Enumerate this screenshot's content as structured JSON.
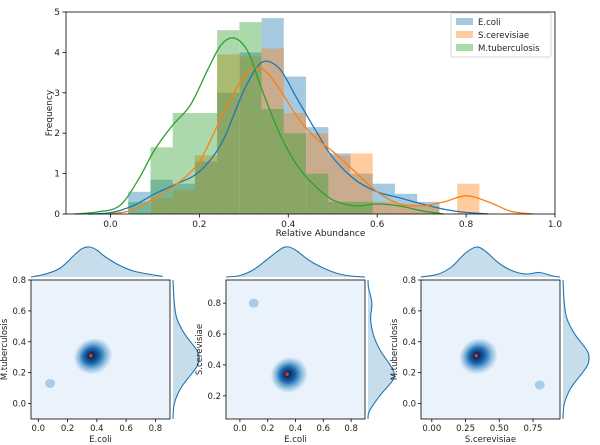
{
  "chart_data": [
    {
      "type": "histogram",
      "xlabel": "Relative Abundance",
      "ylabel": "Frequency",
      "xlim": [
        -0.1,
        1.0
      ],
      "ylim": [
        0,
        5
      ],
      "xticks": [
        "0.0",
        "0.2",
        "0.4",
        "0.6",
        "0.8",
        "1.0"
      ],
      "xtick_values": [
        0.0,
        0.2,
        0.4,
        0.6,
        0.8,
        1.0
      ],
      "yticks": [
        "0",
        "1",
        "2",
        "3",
        "4",
        "5"
      ],
      "ytick_values": [
        0,
        1,
        2,
        3,
        4,
        5
      ],
      "legend_position": "top-right",
      "series": [
        {
          "name": "E.coli",
          "color": "#1f77b4",
          "bins": [
            {
              "x0": 0.04,
              "x1": 0.09,
              "h": 0.55
            },
            {
              "x0": 0.09,
              "x1": 0.14,
              "h": 0.85
            },
            {
              "x0": 0.14,
              "x1": 0.19,
              "h": 0.75
            },
            {
              "x0": 0.19,
              "x1": 0.24,
              "h": 1.3
            },
            {
              "x0": 0.24,
              "x1": 0.29,
              "h": 3.0
            },
            {
              "x0": 0.29,
              "x1": 0.34,
              "h": 4.0
            },
            {
              "x0": 0.34,
              "x1": 0.39,
              "h": 4.85
            },
            {
              "x0": 0.39,
              "x1": 0.44,
              "h": 3.4
            },
            {
              "x0": 0.44,
              "x1": 0.49,
              "h": 2.15
            },
            {
              "x0": 0.49,
              "x1": 0.54,
              "h": 1.5
            },
            {
              "x0": 0.54,
              "x1": 0.59,
              "h": 1.0
            },
            {
              "x0": 0.59,
              "x1": 0.64,
              "h": 0.75
            },
            {
              "x0": 0.64,
              "x1": 0.69,
              "h": 0.5
            },
            {
              "x0": 0.69,
              "x1": 0.74,
              "h": 0.3
            }
          ],
          "kde": [
            [
              -0.05,
              0
            ],
            [
              0.0,
              0.03
            ],
            [
              0.05,
              0.2
            ],
            [
              0.1,
              0.5
            ],
            [
              0.15,
              0.75
            ],
            [
              0.2,
              1.05
            ],
            [
              0.25,
              1.75
            ],
            [
              0.3,
              3.05
            ],
            [
              0.34,
              3.75
            ],
            [
              0.38,
              3.6
            ],
            [
              0.42,
              2.85
            ],
            [
              0.46,
              2.1
            ],
            [
              0.5,
              1.4
            ],
            [
              0.55,
              0.85
            ],
            [
              0.6,
              0.55
            ],
            [
              0.65,
              0.4
            ],
            [
              0.7,
              0.25
            ],
            [
              0.75,
              0.12
            ],
            [
              0.8,
              0.04
            ],
            [
              0.85,
              0
            ]
          ]
        },
        {
          "name": "S.cerevisiae",
          "color": "#ff7f0e",
          "bins": [
            {
              "x0": 0.09,
              "x1": 0.14,
              "h": 0.4
            },
            {
              "x0": 0.14,
              "x1": 0.19,
              "h": 0.6
            },
            {
              "x0": 0.19,
              "x1": 0.24,
              "h": 1.45
            },
            {
              "x0": 0.24,
              "x1": 0.29,
              "h": 3.95
            },
            {
              "x0": 0.29,
              "x1": 0.34,
              "h": 3.9
            },
            {
              "x0": 0.34,
              "x1": 0.39,
              "h": 4.1
            },
            {
              "x0": 0.39,
              "x1": 0.44,
              "h": 2.5
            },
            {
              "x0": 0.44,
              "x1": 0.49,
              "h": 2.0
            },
            {
              "x0": 0.49,
              "x1": 0.54,
              "h": 1.45
            },
            {
              "x0": 0.54,
              "x1": 0.59,
              "h": 1.5
            },
            {
              "x0": 0.59,
              "x1": 0.64,
              "h": 0.3
            },
            {
              "x0": 0.64,
              "x1": 0.69,
              "h": 0.25
            },
            {
              "x0": 0.69,
              "x1": 0.74,
              "h": 0.2
            },
            {
              "x0": 0.78,
              "x1": 0.83,
              "h": 0.75
            }
          ],
          "kde": [
            [
              0.0,
              0
            ],
            [
              0.05,
              0.1
            ],
            [
              0.1,
              0.4
            ],
            [
              0.15,
              0.75
            ],
            [
              0.2,
              1.3
            ],
            [
              0.25,
              2.4
            ],
            [
              0.3,
              3.4
            ],
            [
              0.34,
              3.6
            ],
            [
              0.38,
              3.1
            ],
            [
              0.42,
              2.4
            ],
            [
              0.46,
              1.9
            ],
            [
              0.5,
              1.55
            ],
            [
              0.55,
              1.05
            ],
            [
              0.6,
              0.55
            ],
            [
              0.65,
              0.25
            ],
            [
              0.7,
              0.2
            ],
            [
              0.75,
              0.3
            ],
            [
              0.8,
              0.45
            ],
            [
              0.85,
              0.3
            ],
            [
              0.9,
              0.07
            ],
            [
              0.95,
              0
            ]
          ]
        },
        {
          "name": "M.tuberculosis",
          "color": "#2ca02c",
          "bins": [
            {
              "x0": 0.04,
              "x1": 0.09,
              "h": 0.3
            },
            {
              "x0": 0.09,
              "x1": 0.14,
              "h": 1.65
            },
            {
              "x0": 0.14,
              "x1": 0.19,
              "h": 2.5
            },
            {
              "x0": 0.19,
              "x1": 0.24,
              "h": 2.5
            },
            {
              "x0": 0.24,
              "x1": 0.29,
              "h": 4.55
            },
            {
              "x0": 0.29,
              "x1": 0.34,
              "h": 4.75
            },
            {
              "x0": 0.34,
              "x1": 0.39,
              "h": 2.6
            },
            {
              "x0": 0.39,
              "x1": 0.44,
              "h": 2.0
            },
            {
              "x0": 0.44,
              "x1": 0.49,
              "h": 1.0
            },
            {
              "x0": 0.49,
              "x1": 0.54,
              "h": 0.3
            },
            {
              "x0": 0.54,
              "x1": 0.59,
              "h": 0.3
            }
          ],
          "kde": [
            [
              -0.08,
              0
            ],
            [
              -0.03,
              0.05
            ],
            [
              0.02,
              0.2
            ],
            [
              0.06,
              0.8
            ],
            [
              0.1,
              1.6
            ],
            [
              0.14,
              2.2
            ],
            [
              0.18,
              2.7
            ],
            [
              0.22,
              3.6
            ],
            [
              0.25,
              4.2
            ],
            [
              0.28,
              4.35
            ],
            [
              0.31,
              4.0
            ],
            [
              0.34,
              3.1
            ],
            [
              0.38,
              2.0
            ],
            [
              0.42,
              1.2
            ],
            [
              0.46,
              0.7
            ],
            [
              0.5,
              0.35
            ],
            [
              0.55,
              0.2
            ],
            [
              0.6,
              0.25
            ],
            [
              0.65,
              0.2
            ],
            [
              0.7,
              0.08
            ],
            [
              0.75,
              0
            ]
          ]
        }
      ]
    },
    {
      "type": "kde_joint",
      "xlabel": "E.coli",
      "ylabel": "M.tuberculosis",
      "xlim": [
        -0.05,
        0.9
      ],
      "ylim": [
        -0.1,
        0.8
      ],
      "xticks": [
        "0.0",
        "0.2",
        "0.4",
        "0.6",
        "0.8"
      ],
      "xtick_values": [
        0.0,
        0.2,
        0.4,
        0.6,
        0.8
      ],
      "yticks": [
        "0.0",
        "0.2",
        "0.4",
        "0.6",
        "0.8"
      ],
      "ytick_values": [
        0.0,
        0.2,
        0.4,
        0.6,
        0.8
      ],
      "peak": [
        0.36,
        0.31
      ],
      "contour_extent": [
        0.13,
        0.11
      ],
      "outlier_blob": [
        0.08,
        0.13
      ],
      "marginal_x": [
        [
          -0.05,
          0
        ],
        [
          0.05,
          0.1
        ],
        [
          0.15,
          0.3
        ],
        [
          0.25,
          0.75
        ],
        [
          0.3,
          0.95
        ],
        [
          0.35,
          1.0
        ],
        [
          0.4,
          0.9
        ],
        [
          0.45,
          0.7
        ],
        [
          0.55,
          0.4
        ],
        [
          0.65,
          0.2
        ],
        [
          0.75,
          0.1
        ],
        [
          0.85,
          0.02
        ]
      ],
      "marginal_y": [
        [
          -0.1,
          0
        ],
        [
          0.0,
          0.05
        ],
        [
          0.1,
          0.3
        ],
        [
          0.2,
          0.75
        ],
        [
          0.25,
          0.95
        ],
        [
          0.3,
          1.0
        ],
        [
          0.35,
          0.9
        ],
        [
          0.45,
          0.45
        ],
        [
          0.55,
          0.15
        ],
        [
          0.65,
          0.05
        ],
        [
          0.8,
          0
        ]
      ]
    },
    {
      "type": "kde_joint",
      "xlabel": "E.coli",
      "ylabel": "S.cerevisiae",
      "xlim": [
        -0.1,
        0.9
      ],
      "ylim": [
        0.05,
        0.95
      ],
      "xticks": [
        "0.0",
        "0.2",
        "0.4",
        "0.6",
        "0.8"
      ],
      "xtick_values": [
        0.0,
        0.2,
        0.4,
        0.6,
        0.8
      ],
      "yticks": [
        "0.2",
        "0.4",
        "0.6",
        "0.8"
      ],
      "ytick_values": [
        0.2,
        0.4,
        0.6,
        0.8
      ],
      "peak": [
        0.34,
        0.34
      ],
      "contour_extent": [
        0.13,
        0.11
      ],
      "outlier_blob": [
        0.1,
        0.8
      ],
      "marginal_x": [
        [
          -0.1,
          0
        ],
        [
          0.0,
          0.05
        ],
        [
          0.1,
          0.25
        ],
        [
          0.2,
          0.6
        ],
        [
          0.3,
          0.95
        ],
        [
          0.35,
          1.0
        ],
        [
          0.4,
          0.9
        ],
        [
          0.5,
          0.55
        ],
        [
          0.6,
          0.3
        ],
        [
          0.7,
          0.12
        ],
        [
          0.8,
          0.03
        ],
        [
          0.9,
          0
        ]
      ],
      "marginal_y": [
        [
          0.05,
          0
        ],
        [
          0.1,
          0.05
        ],
        [
          0.2,
          0.45
        ],
        [
          0.3,
          0.95
        ],
        [
          0.35,
          1.0
        ],
        [
          0.4,
          0.85
        ],
        [
          0.5,
          0.45
        ],
        [
          0.6,
          0.2
        ],
        [
          0.7,
          0.1
        ],
        [
          0.8,
          0.15
        ],
        [
          0.9,
          0.02
        ],
        [
          0.95,
          0
        ]
      ]
    },
    {
      "type": "kde_joint",
      "xlabel": "S.cerevisiae",
      "ylabel": "M.tuberculosis",
      "xlim": [
        -0.08,
        0.95
      ],
      "ylim": [
        -0.1,
        0.8
      ],
      "xticks": [
        "0.00",
        "0.25",
        "0.50",
        "0.75"
      ],
      "xtick_values": [
        0.0,
        0.25,
        0.5,
        0.75
      ],
      "yticks": [
        "0.0",
        "0.2",
        "0.4",
        "0.6",
        "0.8"
      ],
      "ytick_values": [
        0.0,
        0.2,
        0.4,
        0.6,
        0.8
      ],
      "peak": [
        0.33,
        0.31
      ],
      "contour_extent": [
        0.14,
        0.11
      ],
      "outlier_blob": [
        0.8,
        0.12
      ],
      "marginal_x": [
        [
          -0.08,
          0
        ],
        [
          0.05,
          0.1
        ],
        [
          0.15,
          0.35
        ],
        [
          0.25,
          0.8
        ],
        [
          0.33,
          1.0
        ],
        [
          0.4,
          0.85
        ],
        [
          0.5,
          0.45
        ],
        [
          0.6,
          0.2
        ],
        [
          0.7,
          0.1
        ],
        [
          0.8,
          0.15
        ],
        [
          0.9,
          0.03
        ],
        [
          0.95,
          0
        ]
      ],
      "marginal_y": [
        [
          -0.1,
          0
        ],
        [
          0.0,
          0.05
        ],
        [
          0.1,
          0.3
        ],
        [
          0.2,
          0.75
        ],
        [
          0.25,
          0.95
        ],
        [
          0.3,
          1.0
        ],
        [
          0.35,
          0.9
        ],
        [
          0.45,
          0.45
        ],
        [
          0.55,
          0.15
        ],
        [
          0.65,
          0.05
        ],
        [
          0.8,
          0
        ]
      ]
    }
  ]
}
